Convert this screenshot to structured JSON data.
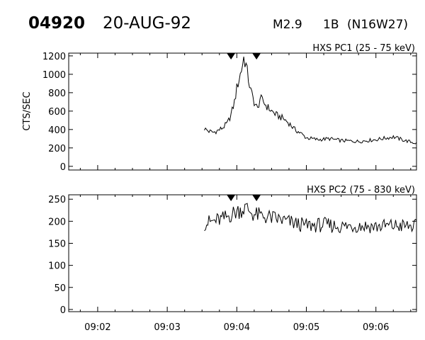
{
  "header": {
    "event_id": "04920",
    "date": "20-AUG-92",
    "goes_class": "M2.9",
    "optical_class": "1B",
    "location": "(N16W27)"
  },
  "chart_data": [
    {
      "type": "line",
      "title": "HXS PC1 (25 - 75 keV)",
      "ylabel": "CTS/SEC",
      "xlabel": "",
      "ylim": [
        -40,
        1230
      ],
      "yticks": [
        "0",
        "200",
        "400",
        "600",
        "800",
        "1000",
        "1200"
      ],
      "xlim": [
        "09:01:35",
        "09:06:35"
      ],
      "xticks": [
        "09:02",
        "09:03",
        "09:04",
        "09:05",
        "09:06"
      ],
      "markers": [
        "09:03:55",
        "09:04:17"
      ],
      "series": [
        {
          "points": [
            [
              "09:03:32",
              410
            ],
            [
              "09:03:36",
              380
            ],
            [
              "09:03:40",
              370
            ],
            [
              "09:03:44",
              390
            ],
            [
              "09:03:48",
              420
            ],
            [
              "09:03:52",
              470
            ],
            [
              "09:03:55",
              560
            ],
            [
              "09:03:58",
              700
            ],
            [
              "09:04:00",
              850
            ],
            [
              "09:04:02",
              950
            ],
            [
              "09:04:04",
              1050
            ],
            [
              "09:04:06",
              1180
            ],
            [
              "09:04:08",
              1100
            ],
            [
              "09:04:10",
              950
            ],
            [
              "09:04:12",
              820
            ],
            [
              "09:04:15",
              700
            ],
            [
              "09:04:18",
              620
            ],
            [
              "09:04:20",
              740
            ],
            [
              "09:04:23",
              700
            ],
            [
              "09:04:26",
              650
            ],
            [
              "09:04:30",
              600
            ],
            [
              "09:04:35",
              550
            ],
            [
              "09:04:40",
              520
            ],
            [
              "09:04:45",
              470
            ],
            [
              "09:04:50",
              400
            ],
            [
              "09:04:55",
              360
            ],
            [
              "09:05:00",
              310
            ],
            [
              "09:05:10",
              290
            ],
            [
              "09:05:20",
              300
            ],
            [
              "09:05:30",
              280
            ],
            [
              "09:05:45",
              270
            ],
            [
              "09:06:00",
              290
            ],
            [
              "09:06:15",
              320
            ],
            [
              "09:06:25",
              280
            ],
            [
              "09:06:35",
              250
            ]
          ]
        }
      ]
    },
    {
      "type": "line",
      "title": "HXS PC2 (75 - 830 keV)",
      "ylabel": "",
      "xlabel": "",
      "ylim": [
        -5,
        260
      ],
      "yticks": [
        "0",
        "50",
        "100",
        "150",
        "200",
        "250"
      ],
      "xlim": [
        "09:01:35",
        "09:06:35"
      ],
      "xticks": [
        "09:02",
        "09:03",
        "09:04",
        "09:05",
        "09:06"
      ],
      "markers": [
        "09:03:55",
        "09:04:17"
      ],
      "series": [
        {
          "points": [
            [
              "09:03:32",
              195
            ],
            [
              "09:03:40",
              200
            ],
            [
              "09:03:48",
              205
            ],
            [
              "09:03:55",
              215
            ],
            [
              "09:04:02",
              225
            ],
            [
              "09:04:08",
              230
            ],
            [
              "09:04:15",
              215
            ],
            [
              "09:04:25",
              210
            ],
            [
              "09:04:35",
              205
            ],
            [
              "09:04:50",
              195
            ],
            [
              "09:05:00",
              190
            ],
            [
              "09:05:15",
              192
            ],
            [
              "09:05:30",
              188
            ],
            [
              "09:05:45",
              190
            ],
            [
              "09:06:00",
              188
            ],
            [
              "09:06:15",
              190
            ],
            [
              "09:06:35",
              188
            ]
          ]
        }
      ]
    }
  ]
}
